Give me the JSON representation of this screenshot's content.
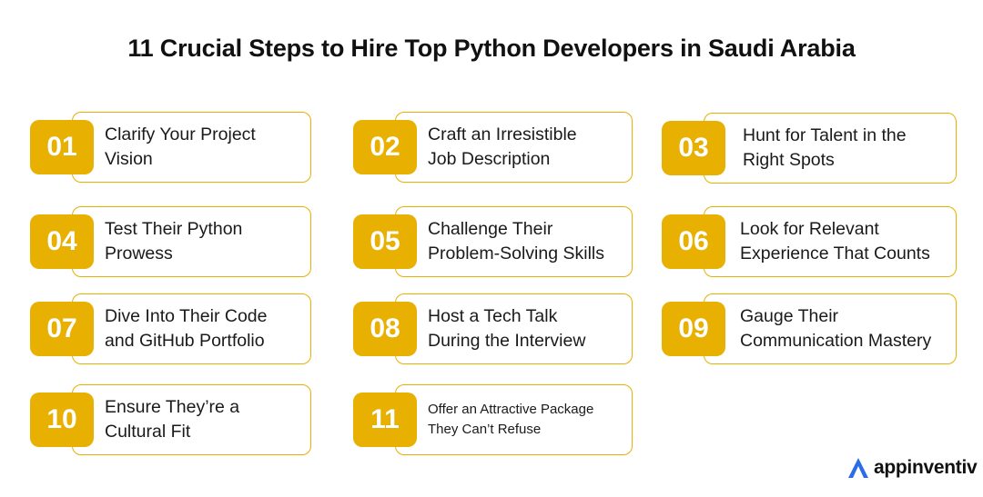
{
  "title": "11 Crucial Steps to Hire Top Python Developers in Saudi Arabia",
  "accent_color": "#e8b000",
  "steps": [
    {
      "number": "01",
      "line1": "Clarify Your Project",
      "line2": "Vision"
    },
    {
      "number": "02",
      "line1": "Craft an Irresistible",
      "line2": "Job Description"
    },
    {
      "number": "03",
      "line1": "Hunt for Talent in the",
      "line2": "Right Spots"
    },
    {
      "number": "04",
      "line1": "Test Their Python",
      "line2": "Prowess"
    },
    {
      "number": "05",
      "line1": "Challenge Their",
      "line2": "Problem-Solving Skills"
    },
    {
      "number": "06",
      "line1": "Look for Relevant",
      "line2": "Experience That Counts"
    },
    {
      "number": "07",
      "line1": "Dive Into Their Code",
      "line2": "and GitHub Portfolio"
    },
    {
      "number": "08",
      "line1": "Host a Tech Talk",
      "line2": "During the Interview"
    },
    {
      "number": "09",
      "line1": "Gauge Their",
      "line2": "Communication Mastery"
    },
    {
      "number": "10",
      "line1": "Ensure They’re a",
      "line2": "Cultural Fit"
    },
    {
      "number": "11",
      "line1": "Offer an Attractive Package",
      "line2": "They Can’t Refuse"
    }
  ],
  "logo": {
    "text": "appinventiv",
    "icon": "appinventiv-logo-icon",
    "color": "#2b6de8"
  }
}
